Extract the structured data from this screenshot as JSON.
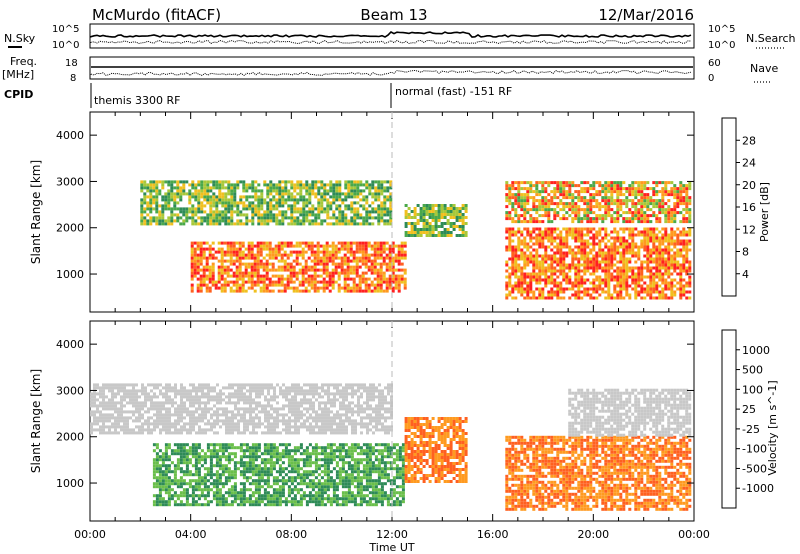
{
  "header": {
    "station": "McMurdo (fitACF)",
    "beam": "Beam 13",
    "date": "12/Mar/2016"
  },
  "top_panels": {
    "nsky_label": "N.Sky",
    "nsearch_label": "N.Search",
    "noise_hi": "10^5",
    "noise_lo": "10^0",
    "freq_label": "Freq.",
    "freq_unit": "[MHz]",
    "freq_hi": "18",
    "freq_lo": "8",
    "nave_label": "Nave",
    "nave_hi": "60",
    "nave_lo": "0",
    "cpid_label": "CPID",
    "cpid_1": "themis 3300 RF",
    "cpid_2": "normal (fast) -151 RF"
  },
  "colors": {
    "power": [
      "#1a1aff",
      "#2a3aa8",
      "#2e8b57",
      "#4aa84a",
      "#a8c83a",
      "#f0c020",
      "#ff9a20",
      "#ff6020",
      "#ff2020"
    ],
    "velocity": [
      "#2a3aa8",
      "#2a5aa8",
      "#2e8b57",
      "#6abf4b",
      "#c8c8c8",
      "#ffd070",
      "#ff9a20",
      "#ff6020",
      "#ff2020"
    ]
  },
  "chart_data": [
    {
      "type": "heatmap",
      "title": "Power",
      "xlabel": "Time UT",
      "ylabel": "Slant Range [km]",
      "x_ticks": [
        "00:00",
        "04:00",
        "08:00",
        "12:00",
        "16:00",
        "20:00",
        "00:00"
      ],
      "x_range_hours": [
        0,
        24
      ],
      "y_ticks": [
        1000,
        2000,
        3000,
        4000
      ],
      "ylim": [
        180,
        4500
      ],
      "colorbar": {
        "label": "Power [dB]",
        "ticks": [
          4,
          8,
          12,
          16,
          20,
          24,
          28
        ],
        "range": [
          0,
          32
        ]
      },
      "regions": [
        {
          "hours": [
            2.0,
            12.0
          ],
          "range_km": [
            2050,
            3000
          ],
          "level": "moderate, 12-20 dB"
        },
        {
          "hours": [
            4.0,
            12.5
          ],
          "range_km": [
            600,
            1700
          ],
          "level": "strong, 20-30 dB"
        },
        {
          "hours": [
            12.5,
            15.0
          ],
          "range_km": [
            1800,
            2450
          ],
          "level": "moderate, 12-16 dB"
        },
        {
          "hours": [
            16.5,
            24.0
          ],
          "range_km": [
            450,
            1950
          ],
          "level": "strong, 24-30 dB"
        },
        {
          "hours": [
            16.5,
            24.0
          ],
          "range_km": [
            2100,
            3000
          ],
          "level": "moderate-strong, 16-28 dB"
        }
      ]
    },
    {
      "type": "heatmap",
      "title": "Velocity",
      "xlabel": "Time UT",
      "ylabel": "Slant Range [km]",
      "x_ticks": [
        "00:00",
        "04:00",
        "08:00",
        "12:00",
        "16:00",
        "20:00",
        "00:00"
      ],
      "x_range_hours": [
        0,
        24
      ],
      "y_ticks": [
        1000,
        2000,
        3000,
        4000
      ],
      "ylim": [
        180,
        4500
      ],
      "colorbar": {
        "label": "Velocity [m s^-1]",
        "ticks": [
          1000,
          500,
          100,
          25,
          -25,
          -100,
          -500,
          -1000
        ],
        "range": [
          -1200,
          1200
        ]
      },
      "regions": [
        {
          "hours": [
            0.0,
            12.0
          ],
          "range_km": [
            2050,
            3100
          ],
          "level": "near zero, -25 to 25 m/s (gray)"
        },
        {
          "hours": [
            2.5,
            12.5
          ],
          "range_km": [
            500,
            1800
          ],
          "level": "positive, 100-500 m/s (green)"
        },
        {
          "hours": [
            12.5,
            15.0
          ],
          "range_km": [
            1000,
            2400
          ],
          "level": "negative, -100 to -500 m/s (orange)"
        },
        {
          "hours": [
            16.5,
            24.0
          ],
          "range_km": [
            400,
            2000
          ],
          "level": "negative, -100 to -500 m/s (orange)"
        },
        {
          "hours": [
            19.0,
            24.0
          ],
          "range_km": [
            2000,
            3000
          ],
          "level": "near zero, -25 to 25 m/s (gray)"
        }
      ]
    }
  ]
}
